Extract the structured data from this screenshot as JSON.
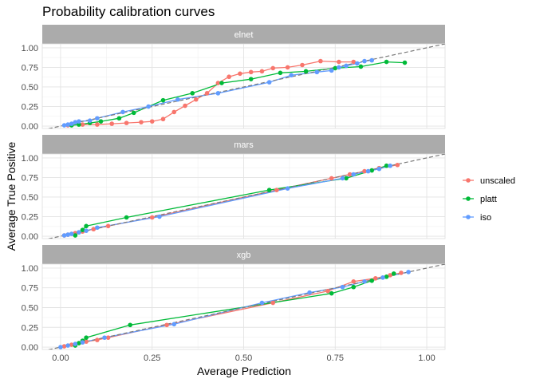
{
  "chart_data": {
    "type": "line",
    "title": "Probability calibration curves",
    "xlabel": "Average Prediction",
    "ylabel": "Average True Positive",
    "xlim": [
      -0.05,
      1.05
    ],
    "ylim": [
      -0.03,
      1.05
    ],
    "x_ticks": [
      0,
      0.25,
      0.5,
      0.75,
      1
    ],
    "x_tick_labels": [
      "0.00",
      "0.25",
      "0.50",
      "0.75",
      "1.00"
    ],
    "y_ticks": [
      0,
      0.25,
      0.5,
      0.75,
      1
    ],
    "y_tick_labels": [
      "0.00",
      "0.25",
      "0.50",
      "0.75",
      "1.00"
    ],
    "grid": true,
    "reference_line": "y = x (dashed)",
    "legend_position": "right",
    "legend": [
      {
        "name": "unscaled",
        "color": "#F8766D"
      },
      {
        "name": "platt",
        "color": "#00BA38"
      },
      {
        "name": "iso",
        "color": "#619CFF"
      }
    ],
    "panels": [
      {
        "label": "elnet",
        "series": [
          {
            "name": "unscaled",
            "x": [
              0.02,
              0.06,
              0.1,
              0.14,
              0.18,
              0.22,
              0.25,
              0.28,
              0.31,
              0.34,
              0.37,
              0.4,
              0.43,
              0.46,
              0.49,
              0.52,
              0.55,
              0.58,
              0.62,
              0.66,
              0.71,
              0.76,
              0.8
            ],
            "y": [
              0.01,
              0.02,
              0.02,
              0.03,
              0.04,
              0.05,
              0.06,
              0.09,
              0.18,
              0.26,
              0.34,
              0.42,
              0.55,
              0.63,
              0.67,
              0.69,
              0.7,
              0.74,
              0.75,
              0.78,
              0.83,
              0.82,
              0.82
            ]
          },
          {
            "name": "platt",
            "x": [
              0.03,
              0.05,
              0.08,
              0.11,
              0.16,
              0.2,
              0.28,
              0.36,
              0.44,
              0.52,
              0.6,
              0.67,
              0.75,
              0.82,
              0.89,
              0.94
            ],
            "y": [
              0.01,
              0.02,
              0.04,
              0.06,
              0.1,
              0.17,
              0.33,
              0.42,
              0.55,
              0.6,
              0.68,
              0.7,
              0.74,
              0.76,
              0.82,
              0.81
            ]
          },
          {
            "name": "iso",
            "x": [
              0.01,
              0.02,
              0.03,
              0.04,
              0.05,
              0.08,
              0.1,
              0.17,
              0.24,
              0.32,
              0.43,
              0.57,
              0.63,
              0.7,
              0.74,
              0.76,
              0.78,
              0.81,
              0.83,
              0.85
            ],
            "y": [
              0.01,
              0.02,
              0.03,
              0.05,
              0.06,
              0.07,
              0.1,
              0.18,
              0.25,
              0.34,
              0.42,
              0.56,
              0.65,
              0.69,
              0.71,
              0.75,
              0.77,
              0.8,
              0.83,
              0.84
            ]
          }
        ]
      },
      {
        "label": "mars",
        "series": [
          {
            "name": "unscaled",
            "x": [
              0.01,
              0.02,
              0.04,
              0.06,
              0.09,
              0.13,
              0.25,
              0.59,
              0.74,
              0.79,
              0.83,
              0.87,
              0.92
            ],
            "y": [
              0.01,
              0.02,
              0.04,
              0.06,
              0.09,
              0.13,
              0.24,
              0.59,
              0.74,
              0.79,
              0.83,
              0.87,
              0.91
            ]
          },
          {
            "name": "platt",
            "x": [
              0.04,
              0.05,
              0.06,
              0.07,
              0.18,
              0.57,
              0.78,
              0.85,
              0.89
            ],
            "y": [
              0.01,
              0.05,
              0.08,
              0.13,
              0.24,
              0.59,
              0.74,
              0.84,
              0.9
            ]
          },
          {
            "name": "iso",
            "x": [
              0.01,
              0.02,
              0.03,
              0.05,
              0.07,
              0.1,
              0.27,
              0.62,
              0.77,
              0.8,
              0.84,
              0.87,
              0.9
            ],
            "y": [
              0.01,
              0.02,
              0.03,
              0.05,
              0.07,
              0.11,
              0.25,
              0.61,
              0.74,
              0.79,
              0.83,
              0.86,
              0.9
            ]
          }
        ]
      },
      {
        "label": "xgb",
        "series": [
          {
            "name": "unscaled",
            "x": [
              0.01,
              0.03,
              0.05,
              0.07,
              0.1,
              0.13,
              0.29,
              0.58,
              0.73,
              0.8,
              0.86,
              0.9,
              0.93
            ],
            "y": [
              0.01,
              0.03,
              0.05,
              0.07,
              0.09,
              0.12,
              0.28,
              0.56,
              0.71,
              0.83,
              0.87,
              0.91,
              0.94
            ]
          },
          {
            "name": "platt",
            "x": [
              0.04,
              0.05,
              0.06,
              0.07,
              0.19,
              0.74,
              0.8,
              0.85,
              0.89,
              0.91
            ],
            "y": [
              0.02,
              0.05,
              0.08,
              0.12,
              0.28,
              0.68,
              0.76,
              0.84,
              0.89,
              0.93
            ]
          },
          {
            "name": "iso",
            "x": [
              0.0,
              0.02,
              0.04,
              0.06,
              0.12,
              0.31,
              0.55,
              0.68,
              0.77,
              0.83,
              0.88,
              0.95
            ],
            "y": [
              0.0,
              0.02,
              0.04,
              0.06,
              0.12,
              0.29,
              0.56,
              0.69,
              0.76,
              0.83,
              0.88,
              0.95
            ]
          }
        ]
      }
    ]
  }
}
